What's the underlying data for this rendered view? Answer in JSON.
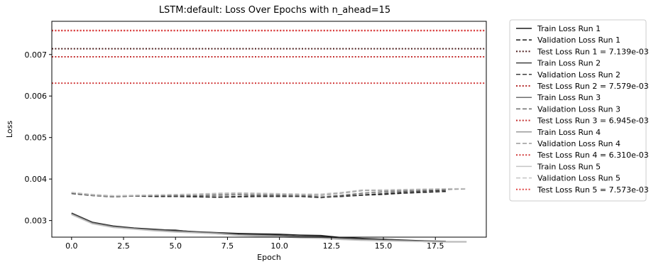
{
  "chart_data": {
    "type": "line",
    "title": "LSTM:default: Loss Over Epochs with n_ahead=15",
    "xlabel": "Epoch",
    "ylabel": "Loss",
    "xlim": [
      -0.95,
      19.95
    ],
    "ylim": [
      0.0026,
      0.0078
    ],
    "xticks": [
      0.0,
      2.5,
      5.0,
      7.5,
      10.0,
      12.5,
      15.0,
      17.5
    ],
    "xtick_labels": [
      "0.0",
      "2.5",
      "5.0",
      "7.5",
      "10.0",
      "12.5",
      "15.0",
      "17.5"
    ],
    "yticks": [
      0.003,
      0.004,
      0.005,
      0.006,
      0.007
    ],
    "ytick_labels": [
      "0.003",
      "0.004",
      "0.005",
      "0.006",
      "0.007"
    ],
    "grid": false,
    "legend_position": "outside-right",
    "series": [
      {
        "name": "Train Loss Run 1",
        "style": "solid",
        "color": "#1a1a1a",
        "x": [
          0,
          1,
          2,
          3,
          4,
          5,
          6,
          7,
          8,
          9,
          10,
          11,
          12,
          13,
          14,
          15,
          16,
          17,
          18
        ],
        "y": [
          0.00318,
          0.00296,
          0.00287,
          0.00282,
          0.00279,
          0.00276,
          0.00273,
          0.00271,
          0.00269,
          0.00268,
          0.00267,
          0.00265,
          0.00264,
          0.00259,
          0.00257,
          0.00255,
          0.00253,
          0.00251,
          0.0025
        ]
      },
      {
        "name": "Validation Loss Run 1",
        "style": "dashed",
        "color": "#1a1a1a",
        "x": [
          0,
          1,
          2,
          3,
          4,
          5,
          6,
          7,
          8,
          9,
          10,
          11,
          12,
          13,
          14,
          15,
          16,
          17,
          18
        ],
        "y": [
          0.00366,
          0.00361,
          0.00358,
          0.00359,
          0.00358,
          0.00358,
          0.00357,
          0.00356,
          0.00357,
          0.00358,
          0.00358,
          0.00358,
          0.00356,
          0.00358,
          0.00361,
          0.00363,
          0.00366,
          0.00368,
          0.0037
        ]
      },
      {
        "name": "Test Loss Run 1 = 7.139e-03",
        "style": "dotted",
        "color": "#4d1f1f",
        "hline": 0.007139
      },
      {
        "name": "Train Loss Run 2",
        "style": "solid",
        "color": "#404040",
        "x": [
          0,
          1,
          2,
          3,
          4,
          5,
          6,
          7,
          8,
          9,
          10,
          11,
          12,
          13,
          14,
          15,
          16,
          17,
          18
        ],
        "y": [
          0.00317,
          0.00295,
          0.00286,
          0.00281,
          0.00278,
          0.00277,
          0.00272,
          0.0027,
          0.00267,
          0.00266,
          0.00265,
          0.00262,
          0.00262,
          0.00258,
          0.00256,
          0.00255,
          0.00252,
          0.0025,
          0.00249
        ]
      },
      {
        "name": "Validation Loss Run 2",
        "style": "dashed",
        "color": "#404040",
        "x": [
          0,
          1,
          2,
          3,
          4,
          5,
          6,
          7,
          8,
          9,
          10,
          11,
          12,
          13,
          14,
          15,
          16,
          17,
          18
        ],
        "y": [
          0.00365,
          0.0036,
          0.00357,
          0.00359,
          0.0036,
          0.00359,
          0.00358,
          0.00357,
          0.00358,
          0.00359,
          0.00359,
          0.00358,
          0.00355,
          0.00359,
          0.00362,
          0.00365,
          0.00369,
          0.00371,
          0.00373
        ]
      },
      {
        "name": "Test Loss Run 2 = 7.579e-03",
        "style": "dotted",
        "color": "#b42a2a",
        "hline": 0.007579
      },
      {
        "name": "Train Loss Run 3",
        "style": "solid",
        "color": "#6e6e6e",
        "x": [
          0,
          1,
          2,
          3,
          4,
          5,
          6,
          7,
          8,
          9,
          10,
          11,
          12,
          13,
          14,
          15,
          16,
          17,
          18
        ],
        "y": [
          0.00316,
          0.00294,
          0.00285,
          0.0028,
          0.00277,
          0.00274,
          0.00272,
          0.0027,
          0.00266,
          0.00264,
          0.00263,
          0.00261,
          0.0026,
          0.00256,
          0.00254,
          0.00253,
          0.00251,
          0.00249,
          0.00249
        ]
      },
      {
        "name": "Validation Loss Run 3",
        "style": "dashed",
        "color": "#6e6e6e",
        "x": [
          0,
          1,
          2,
          3,
          4,
          5,
          6,
          7,
          8,
          9,
          10,
          11,
          12,
          13,
          14,
          15,
          16,
          17,
          18,
          19
        ],
        "y": [
          0.00367,
          0.00362,
          0.00359,
          0.0036,
          0.0036,
          0.0036,
          0.0036,
          0.00361,
          0.00362,
          0.00361,
          0.00361,
          0.00361,
          0.00357,
          0.00361,
          0.00366,
          0.00369,
          0.00372,
          0.00374,
          0.00375,
          0.00376
        ]
      },
      {
        "name": "Test Loss Run 3 = 6.945e-03",
        "style": "dotted",
        "color": "#c43131",
        "hline": 0.006945
      },
      {
        "name": "Train Loss Run 4",
        "style": "solid",
        "color": "#9a9a9a",
        "x": [
          0,
          1,
          2,
          3,
          4,
          5,
          6,
          7,
          8,
          9,
          10,
          11,
          12,
          13,
          14,
          15,
          16,
          17,
          18,
          19
        ],
        "y": [
          0.00315,
          0.00293,
          0.00284,
          0.0028,
          0.00276,
          0.00273,
          0.00271,
          0.00268,
          0.00265,
          0.00264,
          0.00262,
          0.0026,
          0.00258,
          0.00255,
          0.00253,
          0.00252,
          0.00251,
          0.0025,
          0.00249,
          0.00249
        ]
      },
      {
        "name": "Validation Loss Run 4",
        "style": "dashed",
        "color": "#9a9a9a",
        "x": [
          0,
          1,
          2,
          3,
          4,
          5,
          6,
          7,
          8,
          9,
          10,
          11,
          12,
          13,
          14,
          15,
          16,
          17,
          18,
          19
        ],
        "y": [
          0.00367,
          0.00361,
          0.00358,
          0.0036,
          0.00361,
          0.00362,
          0.00363,
          0.00364,
          0.00365,
          0.00364,
          0.00363,
          0.00362,
          0.00361,
          0.00366,
          0.00372,
          0.00372,
          0.00373,
          0.00375,
          0.00376,
          0.00376
        ]
      },
      {
        "name": "Test Loss Run 4 = 6.310e-03",
        "style": "dotted",
        "color": "#d13a3a",
        "hline": 0.00631
      },
      {
        "name": "Train Loss Run 5",
        "style": "solid",
        "color": "#c4c4c4",
        "x": [
          0,
          1,
          2,
          3,
          4,
          5,
          6,
          7,
          8,
          9,
          10,
          11,
          12,
          13,
          14,
          15,
          16,
          17,
          18,
          19
        ],
        "y": [
          0.00314,
          0.00292,
          0.00283,
          0.00279,
          0.00275,
          0.00272,
          0.0027,
          0.00268,
          0.00264,
          0.00262,
          0.00261,
          0.00258,
          0.00257,
          0.00254,
          0.00252,
          0.00251,
          0.0025,
          0.00249,
          0.00248,
          0.00248
        ]
      },
      {
        "name": "Validation Loss Run 5",
        "style": "dashed",
        "color": "#c4c4c4",
        "x": [
          0,
          1,
          2,
          3,
          4,
          5,
          6,
          7,
          8,
          9,
          10,
          11,
          12,
          13,
          14,
          15,
          16,
          17,
          18,
          19
        ],
        "y": [
          0.00368,
          0.00363,
          0.0036,
          0.00361,
          0.00362,
          0.00363,
          0.00364,
          0.00366,
          0.00367,
          0.00366,
          0.00365,
          0.00364,
          0.00364,
          0.00368,
          0.00374,
          0.00374,
          0.00375,
          0.00376,
          0.00377,
          0.00377
        ]
      },
      {
        "name": "Test Loss Run 5 = 7.573e-03",
        "style": "dotted",
        "color": "#e04545",
        "hline": 0.007573
      }
    ]
  }
}
